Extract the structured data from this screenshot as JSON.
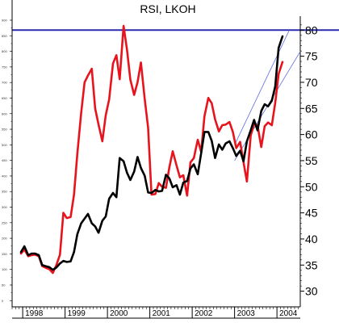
{
  "chart_data": {
    "type": "line",
    "title": "RSI, LKOH",
    "xlabel": "",
    "ylabel": "",
    "left_axis": {
      "ticks": [
        0,
        50,
        100,
        150,
        200,
        250,
        300,
        350,
        400,
        450,
        500,
        550,
        600,
        650,
        700,
        750,
        800,
        850,
        900
      ],
      "ylim": [
        -20,
        900
      ]
    },
    "right_axis": {
      "ticks": [
        30,
        35,
        40,
        45,
        50,
        55,
        60,
        65,
        70,
        75,
        80
      ],
      "ylim": [
        27,
        81.9
      ]
    },
    "x_ticks": [
      "1998",
      "1999",
      "2000",
      "2001",
      "2002",
      "2003",
      "2004"
    ],
    "xlim": [
      1997.75,
      2004.55
    ],
    "reference_line": {
      "axis": "right",
      "value": 80,
      "color": "#2b2bb0"
    },
    "series": [
      {
        "axis": "right",
        "color": "#e8141d",
        "x": [
          1997.96,
          1998.04,
          1998.13,
          1998.21,
          1998.29,
          1998.38,
          1998.46,
          1998.54,
          1998.63,
          1998.71,
          1998.79,
          1998.88,
          1998.96,
          1999.04,
          1999.13,
          1999.21,
          1999.29,
          1999.38,
          1999.46,
          1999.54,
          1999.63,
          1999.71,
          1999.79,
          1999.88,
          1999.96,
          2000.04,
          2000.13,
          2000.21,
          2000.29,
          2000.38,
          2000.46,
          2000.54,
          2000.63,
          2000.71,
          2000.79,
          2000.88,
          2000.96,
          2001.04,
          2001.13,
          2001.21,
          2001.29,
          2001.38,
          2001.46,
          2001.54,
          2001.63,
          2001.71,
          2001.79,
          2001.88,
          2001.96,
          2002.04,
          2002.13,
          2002.21,
          2002.29,
          2002.38,
          2002.46,
          2002.54,
          2002.63,
          2002.71,
          2002.79,
          2002.88,
          2002.96,
          2003.04,
          2003.13,
          2003.21,
          2003.29,
          2003.38,
          2003.46,
          2003.54,
          2003.63,
          2003.71,
          2003.79,
          2003.88,
          2003.96,
          2004.04,
          2004.13
        ],
        "values": [
          37.2,
          38.0,
          36.7,
          36.9,
          37.0,
          36.7,
          34.8,
          34.5,
          34.2,
          33.5,
          34.9,
          37.0,
          45.0,
          44.0,
          44.2,
          48.5,
          56.3,
          64.2,
          70.0,
          71.3,
          72.6,
          65.0,
          61.9,
          58.7,
          63.7,
          66.7,
          73.6,
          75.2,
          70.6,
          80.8,
          76.3,
          70.5,
          67.6,
          70.0,
          73.8,
          66.8,
          61.3,
          48.5,
          48.6,
          50.7,
          50.0,
          49.8,
          53.7,
          56.8,
          54.1,
          51.8,
          52.2,
          48.3,
          54.7,
          55.5,
          59.0,
          56.7,
          63.5,
          67.0,
          66.0,
          62.9,
          60.6,
          61.8,
          61.9,
          62.4,
          60.5,
          57.4,
          58.6,
          54.7,
          51.0,
          59.8,
          62.0,
          61.8,
          57.6,
          61.6,
          62.3,
          61.8,
          66.1,
          71.6,
          73.9
        ]
      },
      {
        "axis": "right",
        "color": "#000000",
        "x": [
          1997.96,
          1998.04,
          1998.13,
          1998.21,
          1998.29,
          1998.38,
          1998.46,
          1998.54,
          1998.63,
          1998.71,
          1998.79,
          1998.88,
          1998.96,
          1999.04,
          1999.13,
          1999.21,
          1999.29,
          1999.38,
          1999.46,
          1999.54,
          1999.63,
          1999.71,
          1999.79,
          1999.88,
          1999.96,
          2000.04,
          2000.13,
          2000.21,
          2000.29,
          2000.38,
          2000.46,
          2000.54,
          2000.63,
          2000.71,
          2000.79,
          2000.88,
          2000.96,
          2001.04,
          2001.13,
          2001.21,
          2001.29,
          2001.38,
          2001.46,
          2001.54,
          2001.63,
          2001.71,
          2001.79,
          2001.88,
          2001.96,
          2002.04,
          2002.13,
          2002.21,
          2002.29,
          2002.38,
          2002.46,
          2002.54,
          2002.63,
          2002.71,
          2002.79,
          2002.88,
          2002.96,
          2003.04,
          2003.13,
          2003.21,
          2003.29,
          2003.38,
          2003.46,
          2003.54,
          2003.63,
          2003.71,
          2003.79,
          2003.88,
          2003.96,
          2004.04,
          2004.13
        ],
        "values": [
          37.5,
          38.6,
          36.9,
          37.2,
          37.2,
          36.9,
          35.0,
          34.8,
          34.6,
          34.1,
          34.5,
          35.3,
          35.8,
          35.6,
          35.7,
          37.5,
          40.9,
          43.0,
          43.9,
          44.8,
          43.0,
          42.4,
          41.2,
          43.5,
          44.3,
          47.7,
          48.8,
          48.0,
          55.5,
          54.9,
          52.7,
          51.3,
          52.9,
          55.7,
          53.6,
          52.1,
          48.9,
          48.8,
          49.4,
          49.1,
          49.2,
          52.3,
          51.6,
          49.9,
          50.3,
          48.5,
          50.8,
          51.1,
          53.5,
          54.3,
          52.4,
          56.4,
          60.5,
          60.5,
          58.8,
          55.5,
          58.1,
          57.1,
          58.3,
          58.7,
          57.4,
          55.9,
          56.9,
          54.9,
          58.7,
          60.8,
          62.8,
          60.8,
          64.5,
          65.8,
          65.4,
          66.5,
          69.2,
          76.6,
          78.8
        ]
      }
    ],
    "trend_lines": [
      {
        "color": "#5a6ee8",
        "from": [
          2003.0,
          58.0
        ],
        "to": [
          2004.28,
          79.8
        ]
      },
      {
        "color": "#5a6ee8",
        "from": [
          2003.0,
          55.0
        ],
        "to": [
          2004.55,
          75.9
        ]
      }
    ]
  }
}
